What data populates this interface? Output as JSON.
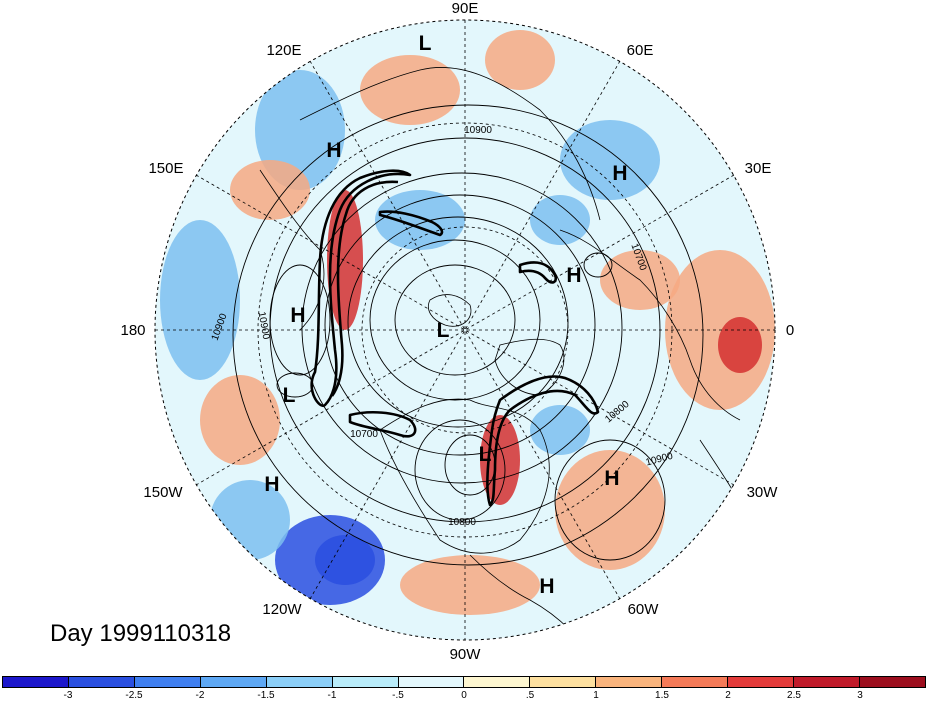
{
  "title": "Day 1999110318",
  "longitude_labels": [
    "90E",
    "60E",
    "30E",
    "0",
    "30W",
    "60W",
    "90W",
    "120W",
    "150W",
    "180",
    "150E",
    "120E"
  ],
  "pressure_centers": [
    "L",
    "H",
    "H",
    "H",
    "H",
    "L",
    "L",
    "H",
    "H",
    "H",
    "L"
  ],
  "contour_labels": [
    "10900",
    "10700",
    "10900",
    "10900",
    "10800",
    "10900",
    "10700",
    "10800"
  ],
  "colorbar": {
    "labels": [
      "-3",
      "-2.5",
      "-2",
      "-1.5",
      "-1",
      "-.5",
      "0",
      ".5",
      "1",
      "1.5",
      "2",
      "2.5",
      "3"
    ],
    "colors": [
      "#1c17cc",
      "#2a4fe0",
      "#3f7ff0",
      "#5ea8f4",
      "#8ccff8",
      "#b9ecfa",
      "#e3f7fc",
      "#fdf6d0",
      "#fde0a0",
      "#f9b47d",
      "#f47a58",
      "#e33b3a",
      "#c01a2a",
      "#9c0e1e"
    ]
  },
  "field_colors": {
    "strong_negative": "#2a4fe0",
    "negative": "#7cc0f0",
    "weak": "#e3f7fc",
    "positive": "#f6a982",
    "strong_positive": "#d43030"
  }
}
